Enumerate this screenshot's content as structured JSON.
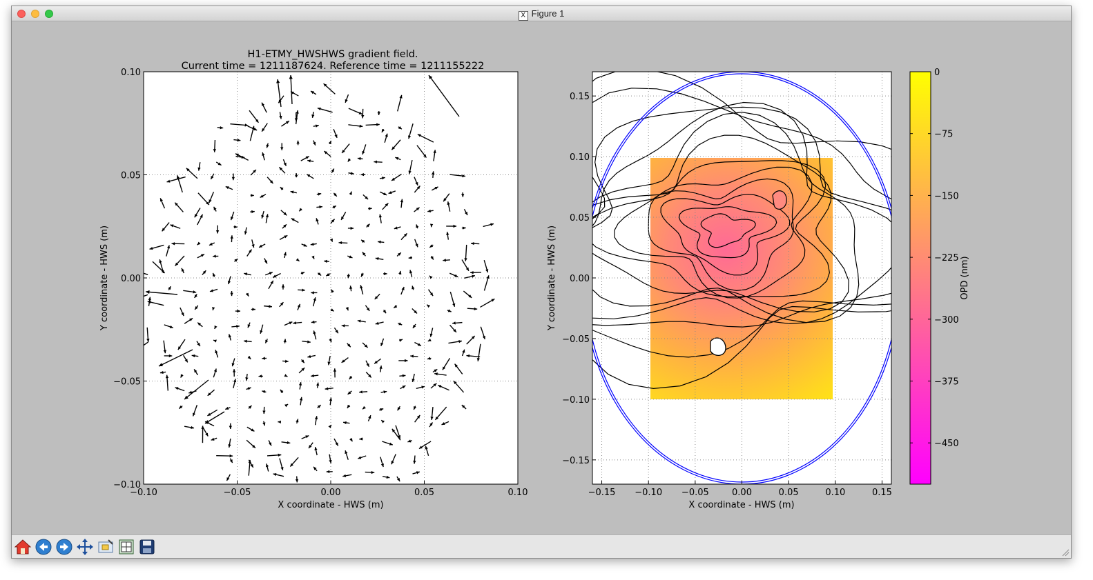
{
  "window": {
    "title": "Figure 1",
    "app_icon": "x11-icon"
  },
  "chart_data": [
    {
      "type": "quiver",
      "title": "H1-ETMY_HWSHWS gradient field.",
      "subtitle": "Current time = 1211187624. Reference time = 1211155222",
      "xlabel": "X coordinate - HWS (m)",
      "ylabel": "Y coordinate - HWS (m)",
      "xlim": [
        -0.1,
        0.1
      ],
      "ylim": [
        -0.1,
        0.1
      ],
      "xticks": [
        "−0.10",
        "−0.05",
        "0.00",
        "0.05",
        "0.10"
      ],
      "yticks": [
        "−0.10",
        "−0.05",
        "0.00",
        "0.05",
        "0.10"
      ],
      "grid": true
    },
    {
      "type": "contour",
      "xlabel": "X coordinate - HWS (m)",
      "ylabel": "Y coordinate - HWS (m)",
      "xlim": [
        -0.16,
        0.16
      ],
      "ylim": [
        -0.17,
        0.17
      ],
      "xticks": [
        "−0.15",
        "−0.10",
        "−0.05",
        "0.00",
        "0.05",
        "0.10",
        "0.15"
      ],
      "yticks": [
        "−0.15",
        "−0.10",
        "−0.05",
        "0.00",
        "0.05",
        "0.10",
        "0.15"
      ],
      "grid": true,
      "data_extent": {
        "x": [
          -0.1,
          0.1
        ],
        "y": [
          -0.1,
          0.1
        ]
      },
      "minimum_center": [
        -0.017,
        0.04
      ],
      "aperture_radius": 0.17,
      "colorbar": {
        "label": "OPD (nm)",
        "ticks": [
          "0",
          "−75",
          "−150",
          "−225",
          "−300",
          "−375",
          "−450"
        ],
        "range": [
          -500,
          0
        ],
        "colormap": "spring",
        "colors": [
          "#ffff00",
          "#ff00ff"
        ]
      },
      "aperture_color": "#0000ff"
    }
  ],
  "toolbar": {
    "buttons": [
      {
        "name": "home-button",
        "icon": "home-icon"
      },
      {
        "name": "back-button",
        "icon": "back-arrow-icon"
      },
      {
        "name": "forward-button",
        "icon": "forward-arrow-icon"
      },
      {
        "name": "pan-button",
        "icon": "pan-icon"
      },
      {
        "name": "zoom-button",
        "icon": "zoom-rect-icon"
      },
      {
        "name": "subplots-button",
        "icon": "subplots-icon"
      },
      {
        "name": "save-button",
        "icon": "save-icon"
      }
    ]
  }
}
